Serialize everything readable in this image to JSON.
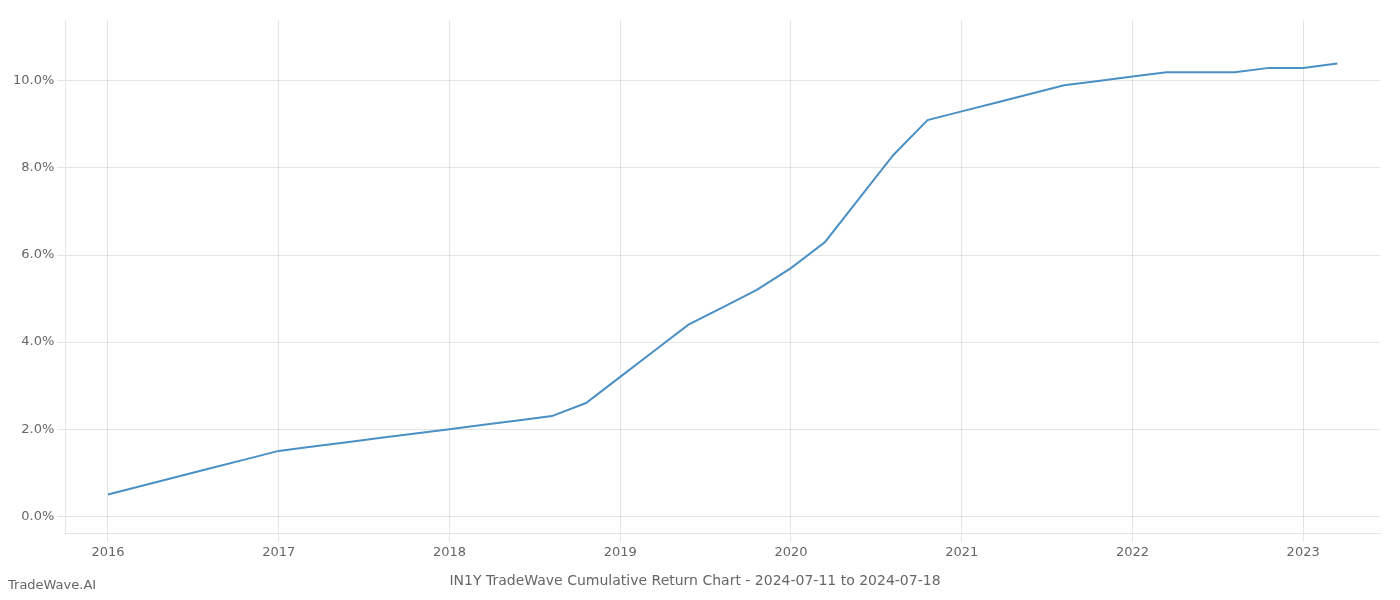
{
  "chart_data": {
    "type": "line",
    "title": "IN1Y TradeWave Cumulative Return Chart - 2024-07-11 to 2024-07-18",
    "annotations": [
      "TradeWave.AI"
    ],
    "x": [
      2016.0,
      2016.2,
      2016.4,
      2016.6,
      2016.8,
      2017.0,
      2017.2,
      2017.4,
      2017.6,
      2017.8,
      2018.0,
      2018.2,
      2018.4,
      2018.6,
      2018.8,
      2019.0,
      2019.2,
      2019.4,
      2019.6,
      2019.8,
      2020.0,
      2020.2,
      2020.4,
      2020.6,
      2020.8,
      2021.0,
      2021.2,
      2021.4,
      2021.6,
      2021.8,
      2022.0,
      2022.2,
      2022.4,
      2022.6,
      2022.8,
      2023.0,
      2023.2
    ],
    "values": [
      0.005,
      0.007,
      0.009,
      0.011,
      0.013,
      0.015,
      0.016,
      0.017,
      0.018,
      0.019,
      0.02,
      0.021,
      0.022,
      0.023,
      0.026,
      0.032,
      0.038,
      0.044,
      0.048,
      0.052,
      0.057,
      0.063,
      0.073,
      0.083,
      0.091,
      0.093,
      0.095,
      0.097,
      0.099,
      0.1,
      0.101,
      0.102,
      0.102,
      0.102,
      0.103,
      0.103,
      0.104
    ],
    "color": "#4a90c4",
    "xlim": [
      2015.75,
      2023.45
    ],
    "ylim": [
      -0.004,
      0.114
    ],
    "xticks": [
      2016,
      2017,
      2018,
      2019,
      2020,
      2021,
      2022,
      2023
    ],
    "yticks": [
      {
        "value": 0.0,
        "label": "0.0%"
      },
      {
        "value": 0.02,
        "label": "2.0%"
      },
      {
        "value": 0.04,
        "label": "4.0%"
      },
      {
        "value": 0.06,
        "label": "6.0%"
      },
      {
        "value": 0.08,
        "label": "8.0%"
      },
      {
        "value": 0.1,
        "label": "10.0%"
      }
    ],
    "grid": true
  }
}
